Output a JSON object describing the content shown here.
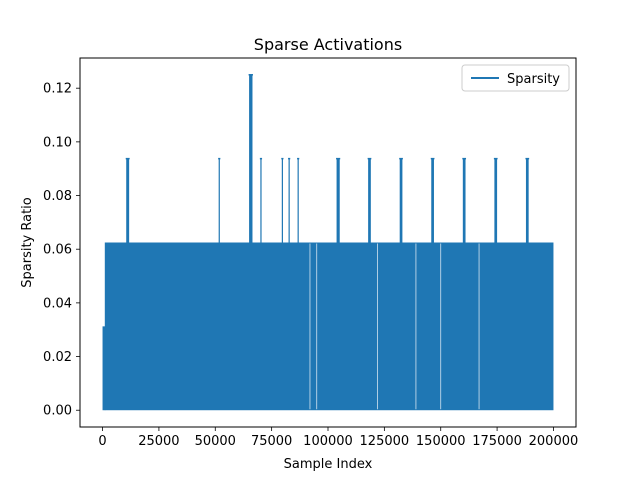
{
  "chart_data": {
    "type": "line",
    "title": "Sparse Activations",
    "xlabel": "Sample Index",
    "ylabel": "Sparsity Ratio",
    "xlim": [
      -10000,
      210000
    ],
    "ylim": [
      -0.00625,
      0.13125
    ],
    "xticks": [
      0,
      25000,
      50000,
      75000,
      100000,
      125000,
      150000,
      175000,
      200000
    ],
    "xtick_labels": [
      "0",
      "25000",
      "50000",
      "75000",
      "100000",
      "125000",
      "150000",
      "175000",
      "200000"
    ],
    "yticks": [
      0.0,
      0.02,
      0.04,
      0.06,
      0.08,
      0.1,
      0.12
    ],
    "ytick_labels": [
      "0.00",
      "0.02",
      "0.04",
      "0.06",
      "0.08",
      "0.10",
      "0.12"
    ],
    "grid": false,
    "legend": {
      "position": "top-right",
      "entries": [
        "Sparsity"
      ]
    },
    "series": [
      {
        "name": "Sparsity",
        "color": "#1f77b4",
        "x_range": [
          0,
          200000
        ],
        "dense_band": [
          0.0,
          0.0625
        ],
        "early_segment": {
          "x_range": [
            0,
            1000
          ],
          "y_range": [
            0.0,
            0.03125
          ]
        },
        "gaps": [
          92000,
          95000,
          122000,
          139000,
          150000,
          167000
        ],
        "spikes": [
          {
            "x": [
              10500,
              11800
            ],
            "y": 0.09375
          },
          {
            "x": [
              51500,
              51600
            ],
            "y": 0.09375
          },
          {
            "x": [
              65000,
              66500
            ],
            "y": 0.125
          },
          {
            "x": [
              70000,
              70100
            ],
            "y": 0.09375
          },
          {
            "x": [
              79500,
              79700
            ],
            "y": 0.09375
          },
          {
            "x": [
              82500,
              82700
            ],
            "y": 0.09375
          },
          {
            "x": [
              86500,
              86700
            ],
            "y": 0.09375
          },
          {
            "x": [
              103800,
              105200
            ],
            "y": 0.09375
          },
          {
            "x": [
              117800,
              119000
            ],
            "y": 0.09375
          },
          {
            "x": [
              131800,
              133000
            ],
            "y": 0.09375
          },
          {
            "x": [
              145800,
              147000
            ],
            "y": 0.09375
          },
          {
            "x": [
              159800,
              161000
            ],
            "y": 0.09375
          },
          {
            "x": [
              173800,
              175000
            ],
            "y": 0.09375
          },
          {
            "x": [
              187800,
              189000
            ],
            "y": 0.09375
          }
        ]
      }
    ]
  }
}
